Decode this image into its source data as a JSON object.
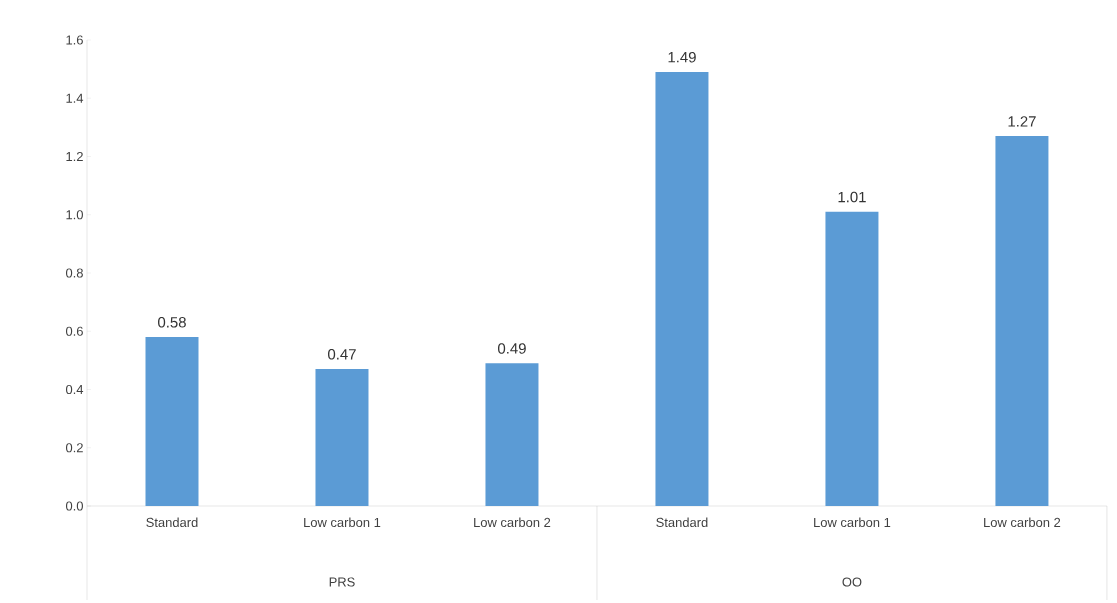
{
  "chart_data": {
    "type": "bar",
    "categories": [
      "Standard",
      "Low carbon 1",
      "Low carbon 2",
      "Standard",
      "Low carbon 1",
      "Low carbon 2"
    ],
    "values": [
      0.58,
      0.47,
      0.49,
      1.49,
      1.01,
      1.27
    ],
    "color": "#5b9bd5",
    "data_labels": true,
    "ylim": [
      0,
      1.6
    ],
    "yticks": [
      {
        "value": 0,
        "label": "0.0"
      },
      {
        "value": 0.2,
        "label": "0.2"
      },
      {
        "value": 0.4,
        "label": "0.4"
      },
      {
        "value": 0.6,
        "label": "0.6"
      },
      {
        "value": 0.8,
        "label": "0.8"
      },
      {
        "value": 1.0,
        "label": "1.0"
      },
      {
        "value": 1.2,
        "label": "1.2"
      },
      {
        "value": 1.4,
        "label": "1.4"
      },
      {
        "value": 1.6,
        "label": "1.6"
      }
    ],
    "grid": false,
    "annotations": [
      "PRS",
      "OO"
    ]
  }
}
